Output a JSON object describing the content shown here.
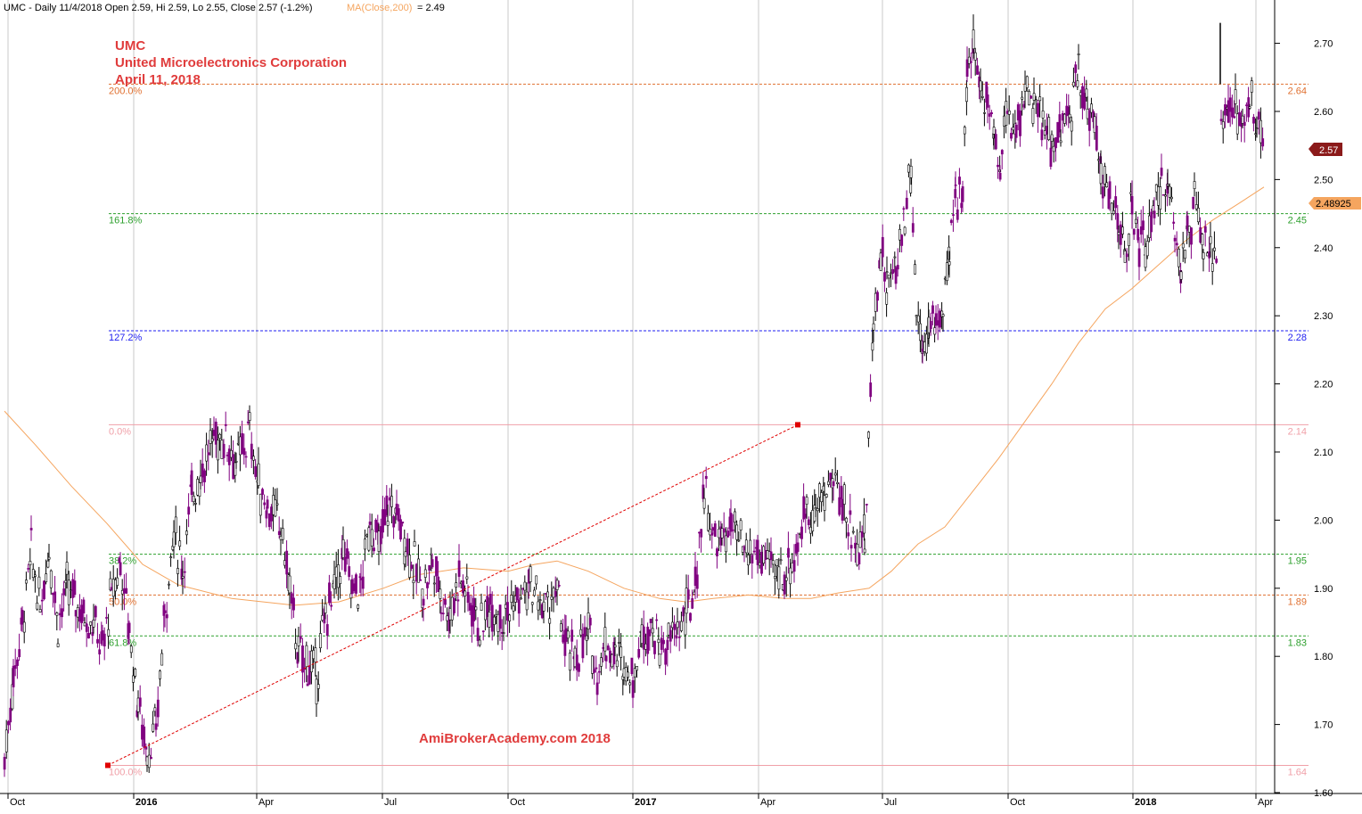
{
  "header": {
    "symbol_line": "UMC - Daily 11/4/2018 Open 2.59, Hi 2.59, Lo 2.55, Close 2.57 (-1.2%)",
    "ma_label": "MA(Close,200)",
    "ma_value": " = 2.49"
  },
  "annotation": {
    "ticker": "UMC",
    "company": "United Microelectronics Corporation",
    "date": "April 11, 2018",
    "watermark": "AmiBrokerAcademy.com  2018"
  },
  "badges": {
    "last_close": "2.57",
    "ma_value": "2.48925"
  },
  "colors": {
    "bearish": "#800080",
    "bullish": "#000000",
    "moving_average": "#f5a55f",
    "title_red": "#e03c3c",
    "fib_green": "#2ea02e",
    "fib_blue": "#1e1ef0",
    "fib_orange": "#e07030",
    "fib_pink": "#f0a0a8",
    "grid": "#c8c8c8"
  },
  "chart_data": {
    "type": "ohlc",
    "title": "UMC - Daily 11/4/2018",
    "ylim": [
      1.6,
      2.74
    ],
    "y_ticks": [
      "1.60",
      "1.70",
      "1.80",
      "1.90",
      "2.00",
      "2.10",
      "2.20",
      "2.30",
      "2.40",
      "2.50",
      "2.60",
      "2.70"
    ],
    "x_ticks": [
      {
        "label": "Oct",
        "bold": false
      },
      {
        "label": "2016",
        "bold": true
      },
      {
        "label": "Apr",
        "bold": false
      },
      {
        "label": "Jul",
        "bold": false
      },
      {
        "label": "Oct",
        "bold": false
      },
      {
        "label": "2017",
        "bold": true
      },
      {
        "label": "Apr",
        "bold": false
      },
      {
        "label": "Jul",
        "bold": false
      },
      {
        "label": "Oct",
        "bold": false
      },
      {
        "label": "2018",
        "bold": true
      },
      {
        "label": "Apr",
        "bold": false
      }
    ],
    "x_tick_positions": [
      9,
      150,
      288,
      429,
      570,
      710,
      851,
      990,
      1131,
      1271,
      1409
    ],
    "x_range": [
      0,
      1430
    ],
    "fibonacci": [
      {
        "label": "200.0%",
        "value": 2.64,
        "value_label": "2.64",
        "color_key": "fib_orange",
        "dash": true
      },
      {
        "label": "161.8%",
        "value": 2.45,
        "value_label": "2.45",
        "color_key": "fib_green",
        "dash": true
      },
      {
        "label": "127.2%",
        "value": 2.278,
        "value_label": "2.28",
        "color_key": "fib_blue",
        "dash": true
      },
      {
        "label": "0.0%",
        "value": 2.14,
        "value_label": "2.14",
        "color_key": "fib_pink",
        "dash": false
      },
      {
        "label": "38.2%",
        "value": 1.95,
        "value_label": "1.95",
        "color_key": "fib_green",
        "dash": true
      },
      {
        "label": "50.0%",
        "value": 1.89,
        "value_label": "1.89",
        "color_key": "fib_orange",
        "dash": true
      },
      {
        "label": "61.8%",
        "value": 1.83,
        "value_label": "1.83",
        "color_key": "fib_green",
        "dash": true
      },
      {
        "label": "100.0%",
        "value": 1.64,
        "value_label": "1.64",
        "color_key": "fib_pink",
        "dash": false
      }
    ],
    "trend_line": {
      "from": [
        121,
        1.64
      ],
      "to": [
        895,
        2.14
      ]
    },
    "moving_average_200": [
      [
        5,
        2.16
      ],
      [
        40,
        2.11
      ],
      [
        80,
        2.05
      ],
      [
        120,
        1.995
      ],
      [
        160,
        1.935
      ],
      [
        200,
        1.905
      ],
      [
        260,
        1.885
      ],
      [
        330,
        1.875
      ],
      [
        380,
        1.88
      ],
      [
        430,
        1.9
      ],
      [
        470,
        1.92
      ],
      [
        520,
        1.93
      ],
      [
        570,
        1.925
      ],
      [
        600,
        1.935
      ],
      [
        625,
        1.94
      ],
      [
        660,
        1.925
      ],
      [
        700,
        1.9
      ],
      [
        740,
        1.885
      ],
      [
        770,
        1.88
      ],
      [
        800,
        1.885
      ],
      [
        840,
        1.89
      ],
      [
        880,
        1.885
      ],
      [
        910,
        1.885
      ],
      [
        940,
        1.893
      ],
      [
        975,
        1.9
      ],
      [
        1000,
        1.925
      ],
      [
        1030,
        1.965
      ],
      [
        1060,
        1.99
      ],
      [
        1090,
        2.04
      ],
      [
        1120,
        2.09
      ],
      [
        1150,
        2.145
      ],
      [
        1180,
        2.2
      ],
      [
        1210,
        2.26
      ],
      [
        1240,
        2.31
      ],
      [
        1270,
        2.34
      ],
      [
        1300,
        2.375
      ],
      [
        1330,
        2.41
      ],
      [
        1360,
        2.44
      ],
      [
        1390,
        2.465
      ],
      [
        1418,
        2.489
      ]
    ],
    "price_path": [
      [
        5,
        1.65
      ],
      [
        15,
        1.77
      ],
      [
        25,
        1.85
      ],
      [
        35,
        1.95
      ],
      [
        45,
        1.87
      ],
      [
        55,
        1.96
      ],
      [
        65,
        1.85
      ],
      [
        75,
        1.9
      ],
      [
        85,
        1.88
      ],
      [
        95,
        1.86
      ],
      [
        105,
        1.85
      ],
      [
        115,
        1.81
      ],
      [
        125,
        1.89
      ],
      [
        135,
        1.94
      ],
      [
        145,
        1.84
      ],
      [
        155,
        1.73
      ],
      [
        165,
        1.66
      ],
      [
        175,
        1.69
      ],
      [
        185,
        1.87
      ],
      [
        195,
        1.98
      ],
      [
        205,
        1.93
      ],
      [
        215,
        2.04
      ],
      [
        225,
        2.07
      ],
      [
        240,
        2.12
      ],
      [
        255,
        2.12
      ],
      [
        265,
        2.08
      ],
      [
        280,
        2.13
      ],
      [
        290,
        2.05
      ],
      [
        300,
        2.02
      ],
      [
        315,
        1.99
      ],
      [
        325,
        1.9
      ],
      [
        335,
        1.8
      ],
      [
        345,
        1.79
      ],
      [
        355,
        1.77
      ],
      [
        365,
        1.86
      ],
      [
        375,
        1.9
      ],
      [
        385,
        1.95
      ],
      [
        395,
        1.9
      ],
      [
        405,
        1.9
      ],
      [
        415,
        2.0
      ],
      [
        425,
        1.96
      ],
      [
        435,
        2.02
      ],
      [
        445,
        2.01
      ],
      [
        455,
        1.97
      ],
      [
        465,
        1.93
      ],
      [
        475,
        1.9
      ],
      [
        485,
        1.94
      ],
      [
        495,
        1.89
      ],
      [
        505,
        1.86
      ],
      [
        515,
        1.92
      ],
      [
        525,
        1.89
      ],
      [
        540,
        1.84
      ],
      [
        550,
        1.88
      ],
      [
        565,
        1.86
      ],
      [
        580,
        1.88
      ],
      [
        595,
        1.9
      ],
      [
        610,
        1.87
      ],
      [
        625,
        1.89
      ],
      [
        635,
        1.81
      ],
      [
        645,
        1.8
      ],
      [
        660,
        1.83
      ],
      [
        670,
        1.78
      ],
      [
        680,
        1.82
      ],
      [
        690,
        1.8
      ],
      [
        700,
        1.79
      ],
      [
        710,
        1.77
      ],
      [
        720,
        1.83
      ],
      [
        730,
        1.85
      ],
      [
        740,
        1.81
      ],
      [
        750,
        1.82
      ],
      [
        760,
        1.84
      ],
      [
        770,
        1.86
      ],
      [
        780,
        1.9
      ],
      [
        790,
        2.05
      ],
      [
        800,
        1.97
      ],
      [
        810,
        1.97
      ],
      [
        820,
        1.99
      ],
      [
        835,
        1.95
      ],
      [
        850,
        1.95
      ],
      [
        865,
        1.93
      ],
      [
        880,
        1.92
      ],
      [
        895,
        1.96
      ],
      [
        905,
        2.02
      ],
      [
        915,
        2.01
      ],
      [
        925,
        2.04
      ],
      [
        935,
        2.06
      ],
      [
        945,
        2.03
      ],
      [
        955,
        1.98
      ],
      [
        965,
        1.97
      ],
      [
        970,
        1.97
      ],
      [
        980,
        2.29
      ],
      [
        988,
        2.4
      ],
      [
        995,
        2.34
      ],
      [
        1005,
        2.37
      ],
      [
        1015,
        2.45
      ],
      [
        1022,
        2.52
      ],
      [
        1028,
        2.31
      ],
      [
        1035,
        2.26
      ],
      [
        1042,
        2.28
      ],
      [
        1050,
        2.29
      ],
      [
        1058,
        2.31
      ],
      [
        1065,
        2.38
      ],
      [
        1072,
        2.47
      ],
      [
        1080,
        2.5
      ],
      [
        1085,
        2.66
      ],
      [
        1092,
        2.69
      ],
      [
        1100,
        2.64
      ],
      [
        1108,
        2.62
      ],
      [
        1115,
        2.57
      ],
      [
        1122,
        2.52
      ],
      [
        1130,
        2.6
      ],
      [
        1140,
        2.57
      ],
      [
        1150,
        2.64
      ],
      [
        1160,
        2.6
      ],
      [
        1170,
        2.58
      ],
      [
        1180,
        2.55
      ],
      [
        1190,
        2.57
      ],
      [
        1200,
        2.59
      ],
      [
        1210,
        2.66
      ],
      [
        1220,
        2.61
      ],
      [
        1228,
        2.58
      ],
      [
        1235,
        2.52
      ],
      [
        1245,
        2.47
      ],
      [
        1255,
        2.43
      ],
      [
        1262,
        2.39
      ],
      [
        1270,
        2.45
      ],
      [
        1278,
        2.41
      ],
      [
        1285,
        2.4
      ],
      [
        1295,
        2.44
      ],
      [
        1303,
        2.5
      ],
      [
        1310,
        2.48
      ],
      [
        1318,
        2.44
      ],
      [
        1325,
        2.37
      ],
      [
        1332,
        2.42
      ],
      [
        1340,
        2.46
      ],
      [
        1350,
        2.4
      ],
      [
        1358,
        2.38
      ],
      [
        1365,
        2.4
      ]
    ],
    "price_path_2": [
      [
        1370,
        2.6
      ],
      [
        1378,
        2.61
      ],
      [
        1386,
        2.6
      ],
      [
        1394,
        2.58
      ],
      [
        1402,
        2.62
      ],
      [
        1410,
        2.56
      ],
      [
        1418,
        2.57
      ]
    ],
    "jump_bar": [
      1369,
      2.64,
      2.73
    ],
    "last_close": 2.57,
    "ma_last": 2.48925
  }
}
